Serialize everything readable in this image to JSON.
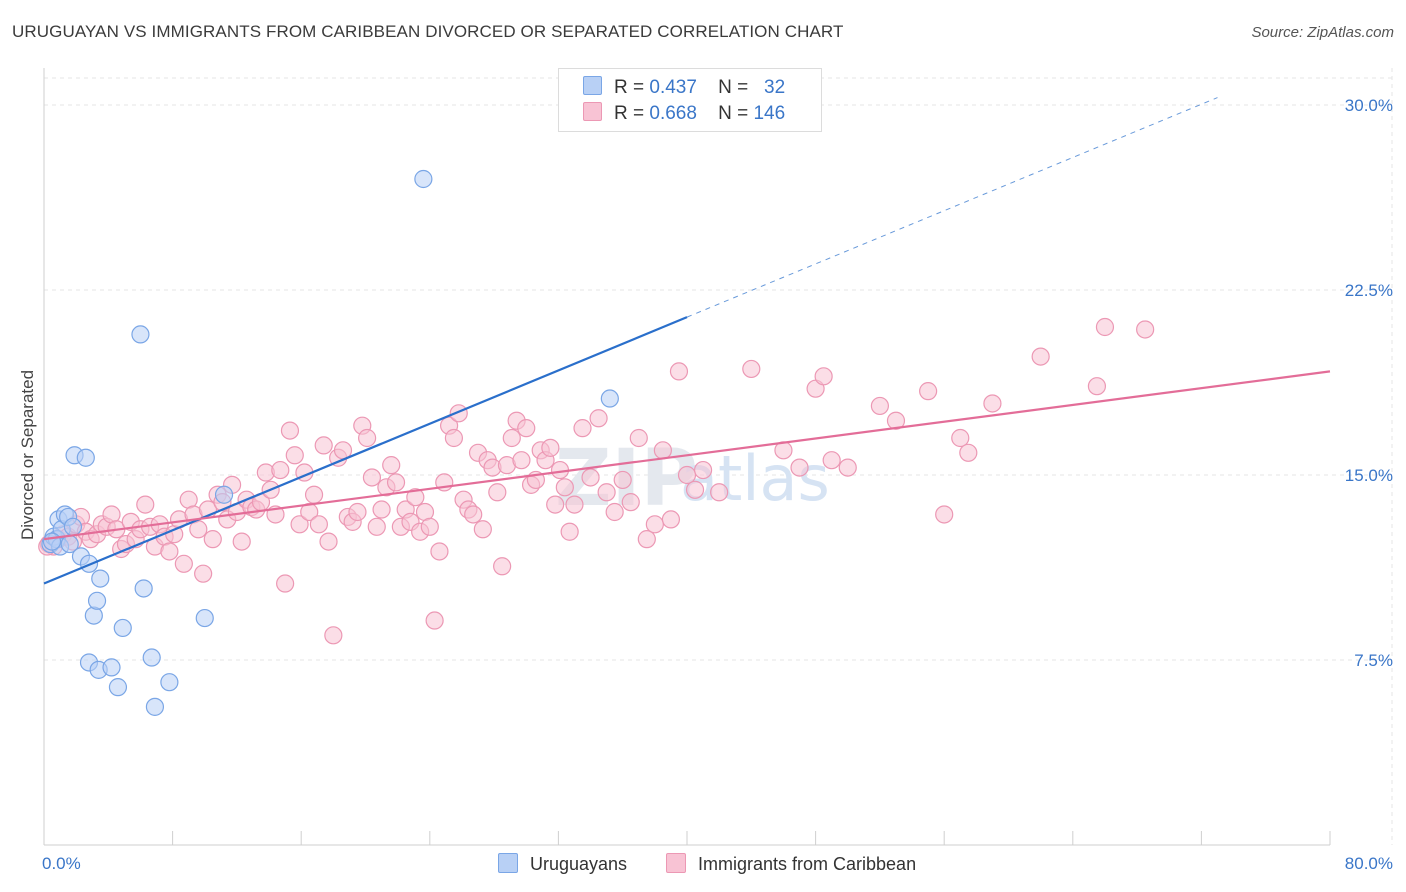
{
  "header": {
    "title": "URUGUAYAN VS IMMIGRANTS FROM CARIBBEAN DIVORCED OR SEPARATED CORRELATION CHART",
    "source": "Source: ZipAtlas.com"
  },
  "legend": {
    "rows": [
      {
        "r_label": "R =",
        "r_value": "0.437",
        "n_label": "N =",
        "n_value": "32"
      },
      {
        "r_label": "R =",
        "r_value": "0.668",
        "n_label": "N =",
        "n_value": "146"
      }
    ]
  },
  "watermark": {
    "zip": "ZIP",
    "atlas": "atlas"
  },
  "chart_data": {
    "type": "scatter",
    "title": "URUGUAYAN VS IMMIGRANTS FROM CARIBBEAN DIVORCED OR SEPARATED CORRELATION CHART",
    "ylabel": "Divorced or Separated",
    "xlabel": "",
    "xlim": [
      0,
      80
    ],
    "ylim": [
      0,
      31.5
    ],
    "x_tick_labels": [
      "0.0%",
      "80.0%"
    ],
    "y_ticks": [
      7.5,
      15.0,
      22.5,
      30.0
    ],
    "y_tick_labels": [
      "7.5%",
      "15.0%",
      "22.5%",
      "30.0%"
    ],
    "grid": true,
    "legend_placement": "top-center",
    "colors": {
      "uruguayans_fill": "#b8d0f5",
      "uruguayans_stroke": "#7aa6e6",
      "uruguayans_line": "#2a6fcb",
      "caribbean_fill": "#f8c3d4",
      "caribbean_stroke": "#ec98b4",
      "caribbean_line": "#e36d98",
      "tick_label": "#3a76c8",
      "grid": "#e6e6e6"
    },
    "series": [
      {
        "name": "Uruguayans",
        "trend": {
          "x0": 0,
          "y0": 10.6,
          "x1": 40,
          "y1": 21.4,
          "dashed_to_x": 73,
          "dashed_to_y": 30.3
        },
        "points": [
          [
            0.4,
            12.2
          ],
          [
            0.6,
            12.5
          ],
          [
            0.8,
            12.4
          ],
          [
            0.9,
            13.2
          ],
          [
            1.0,
            12.1
          ],
          [
            1.1,
            12.8
          ],
          [
            1.3,
            13.4
          ],
          [
            1.5,
            13.3
          ],
          [
            1.6,
            12.2
          ],
          [
            1.8,
            12.9
          ],
          [
            1.9,
            15.8
          ],
          [
            2.3,
            11.7
          ],
          [
            2.6,
            15.7
          ],
          [
            2.8,
            11.4
          ],
          [
            3.1,
            9.3
          ],
          [
            3.3,
            9.9
          ],
          [
            3.5,
            10.8
          ],
          [
            2.8,
            7.4
          ],
          [
            3.4,
            7.1
          ],
          [
            4.2,
            7.2
          ],
          [
            4.6,
            6.4
          ],
          [
            4.9,
            8.8
          ],
          [
            6.0,
            20.7
          ],
          [
            6.2,
            10.4
          ],
          [
            6.7,
            7.6
          ],
          [
            6.9,
            5.6
          ],
          [
            7.8,
            6.6
          ],
          [
            10.0,
            9.2
          ],
          [
            11.2,
            14.2
          ],
          [
            23.6,
            27.0
          ],
          [
            35.2,
            18.1
          ],
          [
            0.5,
            12.3
          ]
        ]
      },
      {
        "name": "Immigrants from Caribbean",
        "trend": {
          "x0": 0,
          "y0": 12.4,
          "x1": 80,
          "y1": 19.2
        },
        "points": [
          [
            0.3,
            12.2
          ],
          [
            0.6,
            12.1
          ],
          [
            0.9,
            12.4
          ],
          [
            1.2,
            12.6
          ],
          [
            1.5,
            12.5
          ],
          [
            1.8,
            12.3
          ],
          [
            2.0,
            13.0
          ],
          [
            2.3,
            13.3
          ],
          [
            2.6,
            12.7
          ],
          [
            2.9,
            12.4
          ],
          [
            3.3,
            12.6
          ],
          [
            3.6,
            13.0
          ],
          [
            3.9,
            12.9
          ],
          [
            4.2,
            13.4
          ],
          [
            4.5,
            12.8
          ],
          [
            4.8,
            12.0
          ],
          [
            5.1,
            12.2
          ],
          [
            5.4,
            13.1
          ],
          [
            5.7,
            12.4
          ],
          [
            6.0,
            12.8
          ],
          [
            6.3,
            13.8
          ],
          [
            6.6,
            12.9
          ],
          [
            6.9,
            12.1
          ],
          [
            7.2,
            13.0
          ],
          [
            7.5,
            12.5
          ],
          [
            7.8,
            11.9
          ],
          [
            8.1,
            12.6
          ],
          [
            8.4,
            13.2
          ],
          [
            8.7,
            11.4
          ],
          [
            9.0,
            14.0
          ],
          [
            9.3,
            13.4
          ],
          [
            9.6,
            12.8
          ],
          [
            9.9,
            11.0
          ],
          [
            10.2,
            13.6
          ],
          [
            10.5,
            12.4
          ],
          [
            10.8,
            14.2
          ],
          [
            11.1,
            13.9
          ],
          [
            11.4,
            13.2
          ],
          [
            11.7,
            14.6
          ],
          [
            12.0,
            13.5
          ],
          [
            12.3,
            12.3
          ],
          [
            12.6,
            14.0
          ],
          [
            12.9,
            13.7
          ],
          [
            13.2,
            13.6
          ],
          [
            13.5,
            13.9
          ],
          [
            13.8,
            15.1
          ],
          [
            14.1,
            14.4
          ],
          [
            14.4,
            13.4
          ],
          [
            14.7,
            15.2
          ],
          [
            15.0,
            10.6
          ],
          [
            15.3,
            16.8
          ],
          [
            15.6,
            15.8
          ],
          [
            15.9,
            13.0
          ],
          [
            16.2,
            15.1
          ],
          [
            16.5,
            13.5
          ],
          [
            16.8,
            14.2
          ],
          [
            17.1,
            13.0
          ],
          [
            17.4,
            16.2
          ],
          [
            17.7,
            12.3
          ],
          [
            18.0,
            8.5
          ],
          [
            18.3,
            15.7
          ],
          [
            18.6,
            16.0
          ],
          [
            18.9,
            13.3
          ],
          [
            19.2,
            13.1
          ],
          [
            19.5,
            13.5
          ],
          [
            19.8,
            17.0
          ],
          [
            20.1,
            16.5
          ],
          [
            20.4,
            14.9
          ],
          [
            20.7,
            12.9
          ],
          [
            21.0,
            13.6
          ],
          [
            21.3,
            14.5
          ],
          [
            21.6,
            15.4
          ],
          [
            21.9,
            14.7
          ],
          [
            22.2,
            12.9
          ],
          [
            22.5,
            13.6
          ],
          [
            22.8,
            13.1
          ],
          [
            23.1,
            14.1
          ],
          [
            23.4,
            12.7
          ],
          [
            23.7,
            13.5
          ],
          [
            24.0,
            12.9
          ],
          [
            24.3,
            9.1
          ],
          [
            24.6,
            11.9
          ],
          [
            24.9,
            14.7
          ],
          [
            25.2,
            17.0
          ],
          [
            25.5,
            16.5
          ],
          [
            25.8,
            17.5
          ],
          [
            26.1,
            14.0
          ],
          [
            26.4,
            13.6
          ],
          [
            26.7,
            13.4
          ],
          [
            27.0,
            15.9
          ],
          [
            27.3,
            12.8
          ],
          [
            27.6,
            15.6
          ],
          [
            27.9,
            15.3
          ],
          [
            28.2,
            14.3
          ],
          [
            28.5,
            11.3
          ],
          [
            28.8,
            15.4
          ],
          [
            29.1,
            16.5
          ],
          [
            29.4,
            17.2
          ],
          [
            29.7,
            15.6
          ],
          [
            30.0,
            16.9
          ],
          [
            30.3,
            14.6
          ],
          [
            30.6,
            14.8
          ],
          [
            30.9,
            16.0
          ],
          [
            31.2,
            15.6
          ],
          [
            31.5,
            16.1
          ],
          [
            31.8,
            13.8
          ],
          [
            32.1,
            15.2
          ],
          [
            32.4,
            14.5
          ],
          [
            32.7,
            12.7
          ],
          [
            33.0,
            13.8
          ],
          [
            33.5,
            16.9
          ],
          [
            34.0,
            14.9
          ],
          [
            34.5,
            17.3
          ],
          [
            35.0,
            14.3
          ],
          [
            35.5,
            13.5
          ],
          [
            36.0,
            14.8
          ],
          [
            36.5,
            13.9
          ],
          [
            37.0,
            16.5
          ],
          [
            37.5,
            12.4
          ],
          [
            38.0,
            13.0
          ],
          [
            38.5,
            16.0
          ],
          [
            39.0,
            13.2
          ],
          [
            39.5,
            19.2
          ],
          [
            40.0,
            15.0
          ],
          [
            40.5,
            14.4
          ],
          [
            41.0,
            15.2
          ],
          [
            42.0,
            14.3
          ],
          [
            44.0,
            19.3
          ],
          [
            46.0,
            16.0
          ],
          [
            47.0,
            15.3
          ],
          [
            48.0,
            18.5
          ],
          [
            48.5,
            19.0
          ],
          [
            49.0,
            15.6
          ],
          [
            50.0,
            15.3
          ],
          [
            52.0,
            17.8
          ],
          [
            53.0,
            17.2
          ],
          [
            55.0,
            18.4
          ],
          [
            56.0,
            13.4
          ],
          [
            57.0,
            16.5
          ],
          [
            57.5,
            15.9
          ],
          [
            59.0,
            17.9
          ],
          [
            62.0,
            19.8
          ],
          [
            65.5,
            18.6
          ],
          [
            66.0,
            21.0
          ],
          [
            68.5,
            20.9
          ],
          [
            0.2,
            12.1
          ]
        ]
      }
    ]
  }
}
